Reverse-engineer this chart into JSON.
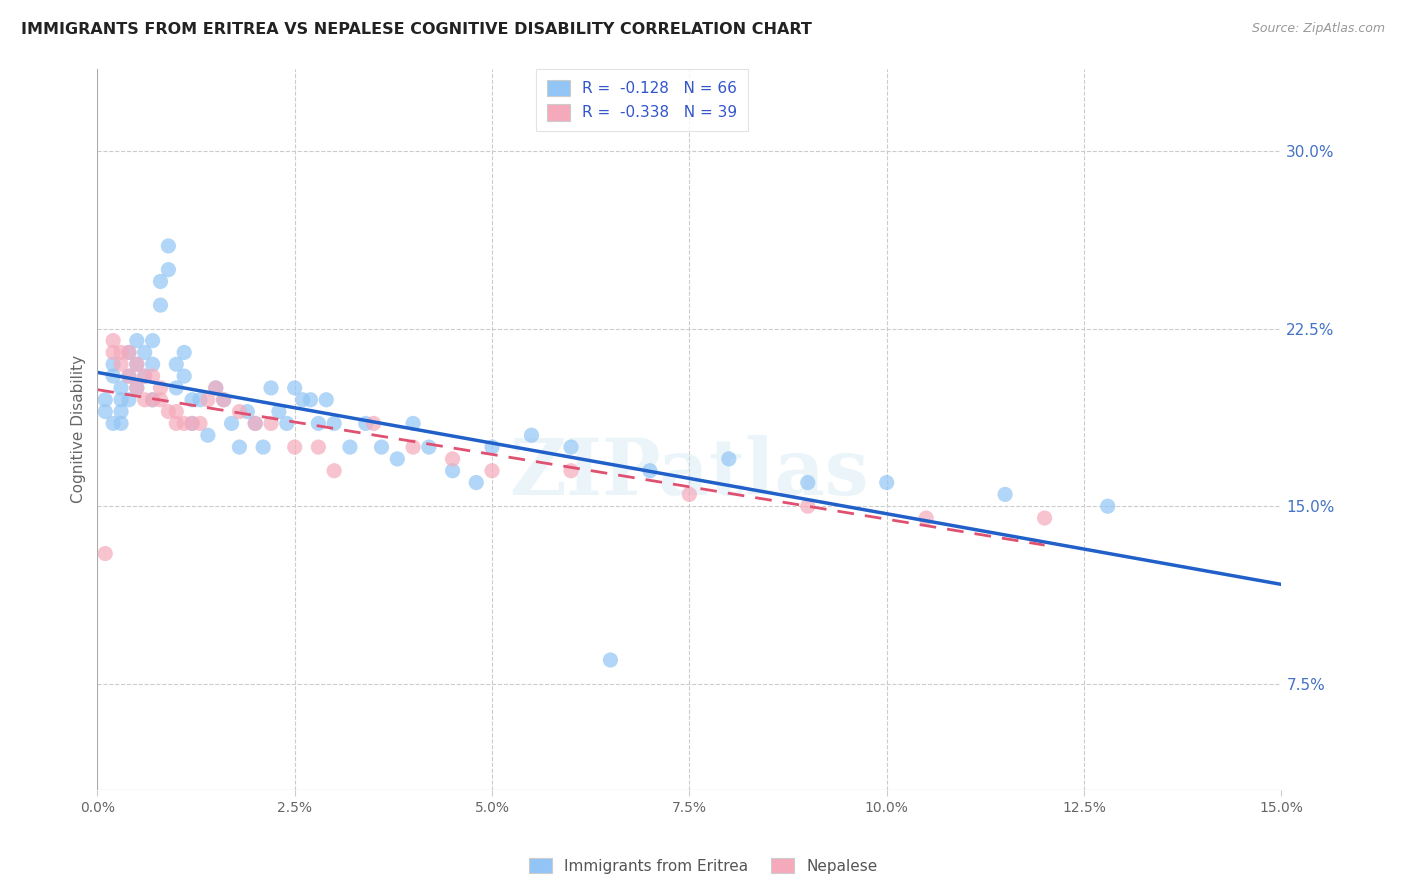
{
  "title": "IMMIGRANTS FROM ERITREA VS NEPALESE COGNITIVE DISABILITY CORRELATION CHART",
  "source": "Source: ZipAtlas.com",
  "ylabel": "Cognitive Disability",
  "ytick_labels": [
    "7.5%",
    "15.0%",
    "22.5%",
    "30.0%"
  ],
  "ytick_values": [
    0.075,
    0.15,
    0.225,
    0.3
  ],
  "xlim": [
    0.0,
    0.15
  ],
  "ylim": [
    0.03,
    0.335
  ],
  "legend1_R": "-0.128",
  "legend1_N": "66",
  "legend2_R": "-0.338",
  "legend2_N": "39",
  "color_eritrea": "#92C5F5",
  "color_eritrea_line": "#2060C8",
  "color_nepalese": "#F5AABB",
  "color_nepalese_line": "#E05070",
  "scatter_eritrea_x": [
    0.001,
    0.001,
    0.002,
    0.002,
    0.002,
    0.003,
    0.003,
    0.003,
    0.003,
    0.004,
    0.004,
    0.004,
    0.005,
    0.005,
    0.005,
    0.006,
    0.006,
    0.007,
    0.007,
    0.007,
    0.008,
    0.008,
    0.009,
    0.009,
    0.01,
    0.01,
    0.011,
    0.011,
    0.012,
    0.012,
    0.013,
    0.014,
    0.015,
    0.016,
    0.017,
    0.018,
    0.019,
    0.02,
    0.021,
    0.022,
    0.023,
    0.024,
    0.025,
    0.026,
    0.027,
    0.028,
    0.029,
    0.03,
    0.032,
    0.034,
    0.036,
    0.038,
    0.04,
    0.042,
    0.045,
    0.048,
    0.05,
    0.055,
    0.06,
    0.065,
    0.07,
    0.08,
    0.09,
    0.1,
    0.115,
    0.128
  ],
  "scatter_eritrea_y": [
    0.19,
    0.195,
    0.205,
    0.21,
    0.185,
    0.2,
    0.195,
    0.19,
    0.185,
    0.215,
    0.205,
    0.195,
    0.22,
    0.21,
    0.2,
    0.215,
    0.205,
    0.22,
    0.21,
    0.195,
    0.245,
    0.235,
    0.25,
    0.26,
    0.21,
    0.2,
    0.215,
    0.205,
    0.195,
    0.185,
    0.195,
    0.18,
    0.2,
    0.195,
    0.185,
    0.175,
    0.19,
    0.185,
    0.175,
    0.2,
    0.19,
    0.185,
    0.2,
    0.195,
    0.195,
    0.185,
    0.195,
    0.185,
    0.175,
    0.185,
    0.175,
    0.17,
    0.185,
    0.175,
    0.165,
    0.16,
    0.175,
    0.18,
    0.175,
    0.085,
    0.165,
    0.17,
    0.16,
    0.16,
    0.155,
    0.15
  ],
  "scatter_nepalese_x": [
    0.001,
    0.002,
    0.002,
    0.003,
    0.003,
    0.004,
    0.004,
    0.005,
    0.005,
    0.006,
    0.006,
    0.007,
    0.007,
    0.008,
    0.008,
    0.009,
    0.01,
    0.01,
    0.011,
    0.012,
    0.013,
    0.014,
    0.015,
    0.016,
    0.018,
    0.02,
    0.022,
    0.025,
    0.028,
    0.03,
    0.035,
    0.04,
    0.045,
    0.05,
    0.06,
    0.075,
    0.09,
    0.105,
    0.12
  ],
  "scatter_nepalese_y": [
    0.13,
    0.22,
    0.215,
    0.215,
    0.21,
    0.215,
    0.205,
    0.2,
    0.21,
    0.205,
    0.195,
    0.205,
    0.195,
    0.2,
    0.195,
    0.19,
    0.19,
    0.185,
    0.185,
    0.185,
    0.185,
    0.195,
    0.2,
    0.195,
    0.19,
    0.185,
    0.185,
    0.175,
    0.175,
    0.165,
    0.185,
    0.175,
    0.17,
    0.165,
    0.165,
    0.155,
    0.15,
    0.145,
    0.145
  ],
  "watermark": "ZIPatlas",
  "xtick_positions": [
    0.0,
    0.025,
    0.05,
    0.075,
    0.1,
    0.125,
    0.15
  ],
  "xtick_labels": [
    "0.0%",
    "2.5%",
    "5.0%",
    "7.5%",
    "10.0%",
    "12.5%",
    "15.0%"
  ]
}
